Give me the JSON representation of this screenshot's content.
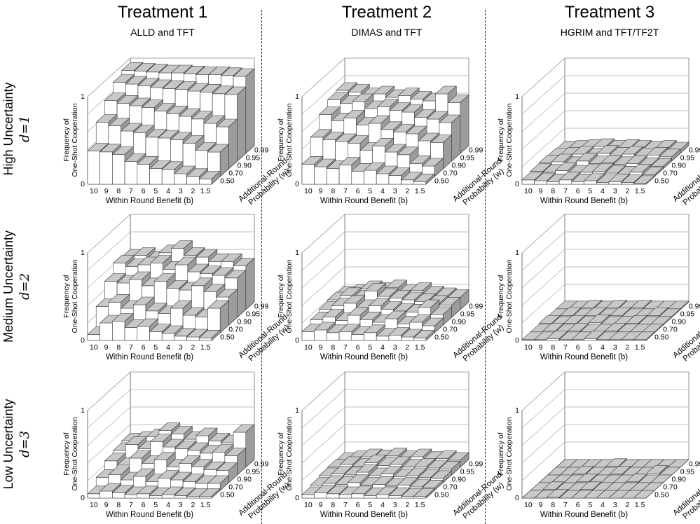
{
  "columns": [
    {
      "title": "Treatment 1",
      "subtitle": "ALLD and TFT"
    },
    {
      "title": "Treatment 2",
      "subtitle": "DIMAS and TFT"
    },
    {
      "title": "Treatment 3",
      "subtitle": "HGRIM and TFT/TF2T"
    }
  ],
  "rows": [
    {
      "label": "High Uncertainty",
      "d_label": "d=1"
    },
    {
      "label": "Medium Uncertainty",
      "d_label": "d=2"
    },
    {
      "label": "Low Uncertainty",
      "d_label": "d=3"
    }
  ],
  "axes": {
    "z_label_line1": "Frequency of",
    "z_label_line2": "One-Shot Cooperation",
    "x_label": "Within Round Benefit (b)",
    "y_label_line1": "Additional-Round",
    "y_label_line2": "Probability (w)",
    "z_ticks": [
      "0",
      "1"
    ],
    "x_ticks": [
      "10",
      "9",
      "8",
      "7",
      "6",
      "5",
      "4",
      "3",
      "2",
      "1.5"
    ],
    "y_ticks": [
      "0.50",
      "0.70",
      "0.90",
      "0.95",
      "0.99"
    ]
  },
  "chart_data": [
    {
      "type": "bar3d",
      "treatment": "Treatment 1",
      "uncertainty": "High Uncertainty",
      "zlim": [
        0,
        1
      ],
      "x_categories": [
        "10",
        "9",
        "8",
        "7",
        "6",
        "5",
        "4",
        "3",
        "2",
        "1.5"
      ],
      "y_categories": [
        "0.50",
        "0.70",
        "0.90",
        "0.95",
        "0.99"
      ],
      "values": [
        [
          0.38,
          0.37,
          0.34,
          0.26,
          0.23,
          0.18,
          0.17,
          0.12,
          0.09,
          0.06
        ],
        [
          0.62,
          0.58,
          0.52,
          0.5,
          0.45,
          0.44,
          0.42,
          0.38,
          0.3,
          0.28
        ],
        [
          0.78,
          0.75,
          0.72,
          0.7,
          0.66,
          0.63,
          0.6,
          0.57,
          0.52,
          0.48
        ],
        [
          0.9,
          0.88,
          0.86,
          0.84,
          0.83,
          0.82,
          0.8,
          0.79,
          0.77,
          0.76
        ],
        [
          0.95,
          0.94,
          0.93,
          0.92,
          0.92,
          0.91,
          0.9,
          0.9,
          0.89,
          0.88
        ]
      ]
    },
    {
      "type": "bar3d",
      "treatment": "Treatment 2",
      "uncertainty": "High Uncertainty",
      "zlim": [
        0,
        1
      ],
      "x_categories": [
        "10",
        "9",
        "8",
        "7",
        "6",
        "5",
        "4",
        "3",
        "2",
        "1.5"
      ],
      "y_categories": [
        "0.50",
        "0.70",
        "0.90",
        "0.95",
        "0.99"
      ],
      "values": [
        [
          0.23,
          0.2,
          0.18,
          0.22,
          0.15,
          0.16,
          0.12,
          0.1,
          0.05,
          0.03
        ],
        [
          0.45,
          0.42,
          0.4,
          0.38,
          0.3,
          0.35,
          0.28,
          0.25,
          0.15,
          0.12
        ],
        [
          0.62,
          0.55,
          0.58,
          0.5,
          0.52,
          0.45,
          0.42,
          0.4,
          0.32,
          0.3
        ],
        [
          0.7,
          0.66,
          0.68,
          0.6,
          0.62,
          0.58,
          0.56,
          0.5,
          0.48,
          0.44
        ],
        [
          0.72,
          0.7,
          0.66,
          0.68,
          0.64,
          0.66,
          0.62,
          0.6,
          0.68,
          0.58
        ]
      ]
    },
    {
      "type": "bar3d",
      "treatment": "Treatment 3",
      "uncertainty": "High Uncertainty",
      "zlim": [
        0,
        1
      ],
      "x_categories": [
        "10",
        "9",
        "8",
        "7",
        "6",
        "5",
        "4",
        "3",
        "2",
        "1.5"
      ],
      "y_categories": [
        "0.50",
        "0.70",
        "0.90",
        "0.95",
        "0.99"
      ],
      "values": [
        [
          0.05,
          0.04,
          0.03,
          0.05,
          0.03,
          0.04,
          0.02,
          0.03,
          0.02,
          0.01
        ],
        [
          0.06,
          0.05,
          0.07,
          0.04,
          0.05,
          0.06,
          0.04,
          0.03,
          0.05,
          0.02
        ],
        [
          0.07,
          0.08,
          0.05,
          0.09,
          0.06,
          0.07,
          0.05,
          0.06,
          0.04,
          0.03
        ],
        [
          0.06,
          0.07,
          0.08,
          0.06,
          0.09,
          0.07,
          0.08,
          0.06,
          0.07,
          0.05
        ],
        [
          0.05,
          0.06,
          0.07,
          0.08,
          0.06,
          0.07,
          0.06,
          0.05,
          0.06,
          0.04
        ]
      ]
    },
    {
      "type": "bar3d",
      "treatment": "Treatment 1",
      "uncertainty": "Medium Uncertainty",
      "zlim": [
        0,
        1
      ],
      "x_categories": [
        "10",
        "9",
        "8",
        "7",
        "6",
        "5",
        "4",
        "3",
        "2",
        "1.5"
      ],
      "y_categories": [
        "0.50",
        "0.70",
        "0.90",
        "0.95",
        "0.99"
      ],
      "values": [
        [
          0.07,
          0.2,
          0.22,
          0.15,
          0.16,
          0.1,
          0.08,
          0.05,
          0.04,
          0.03
        ],
        [
          0.3,
          0.35,
          0.28,
          0.32,
          0.25,
          0.22,
          0.28,
          0.2,
          0.18,
          0.28
        ],
        [
          0.5,
          0.48,
          0.52,
          0.45,
          0.5,
          0.42,
          0.4,
          0.45,
          0.38,
          0.32
        ],
        [
          0.62,
          0.58,
          0.6,
          0.62,
          0.55,
          0.6,
          0.52,
          0.5,
          0.48,
          0.45
        ],
        [
          0.6,
          0.62,
          0.58,
          0.65,
          0.7,
          0.62,
          0.6,
          0.55,
          0.55,
          0.5
        ]
      ]
    },
    {
      "type": "bar3d",
      "treatment": "Treatment 2",
      "uncertainty": "Medium Uncertainty",
      "zlim": [
        0,
        1
      ],
      "x_categories": [
        "10",
        "9",
        "8",
        "7",
        "6",
        "5",
        "4",
        "3",
        "2",
        "1.5"
      ],
      "y_categories": [
        "0.50",
        "0.70",
        "0.90",
        "0.95",
        "0.99"
      ],
      "values": [
        [
          0.1,
          0.12,
          0.09,
          0.1,
          0.07,
          0.09,
          0.05,
          0.06,
          0.04,
          0.03
        ],
        [
          0.15,
          0.18,
          0.14,
          0.2,
          0.15,
          0.12,
          0.16,
          0.1,
          0.12,
          0.08
        ],
        [
          0.18,
          0.22,
          0.25,
          0.2,
          0.22,
          0.18,
          0.16,
          0.15,
          0.2,
          0.12
        ],
        [
          0.2,
          0.25,
          0.22,
          0.3,
          0.24,
          0.22,
          0.2,
          0.18,
          0.16,
          0.14
        ],
        [
          0.18,
          0.2,
          0.24,
          0.22,
          0.25,
          0.2,
          0.22,
          0.18,
          0.16,
          0.14
        ]
      ]
    },
    {
      "type": "bar3d",
      "treatment": "Treatment 3",
      "uncertainty": "Medium Uncertainty",
      "zlim": [
        0,
        1
      ],
      "x_categories": [
        "10",
        "9",
        "8",
        "7",
        "6",
        "5",
        "4",
        "3",
        "2",
        "1.5"
      ],
      "y_categories": [
        "0.50",
        "0.70",
        "0.90",
        "0.95",
        "0.99"
      ],
      "values": [
        [
          0.01,
          0.01,
          0.02,
          0.01,
          0.01,
          0.02,
          0.01,
          0.01,
          0.01,
          0.01
        ],
        [
          0.01,
          0.02,
          0.01,
          0.02,
          0.01,
          0.01,
          0.02,
          0.01,
          0.01,
          0.01
        ],
        [
          0.02,
          0.01,
          0.02,
          0.01,
          0.03,
          0.01,
          0.01,
          0.02,
          0.01,
          0.01
        ],
        [
          0.01,
          0.02,
          0.01,
          0.02,
          0.01,
          0.02,
          0.01,
          0.01,
          0.02,
          0.01
        ],
        [
          0.01,
          0.01,
          0.02,
          0.01,
          0.02,
          0.01,
          0.02,
          0.01,
          0.01,
          0.01
        ]
      ]
    },
    {
      "type": "bar3d",
      "treatment": "Treatment 1",
      "uncertainty": "Low Uncertainty",
      "zlim": [
        0,
        1
      ],
      "x_categories": [
        "10",
        "9",
        "8",
        "7",
        "6",
        "5",
        "4",
        "3",
        "2",
        "1.5"
      ],
      "y_categories": [
        "0.50",
        "0.70",
        "0.90",
        "0.95",
        "0.99"
      ],
      "values": [
        [
          0.05,
          0.08,
          0.06,
          0.04,
          0.05,
          0.03,
          0.04,
          0.03,
          0.02,
          0.02
        ],
        [
          0.15,
          0.18,
          0.12,
          0.16,
          0.1,
          0.14,
          0.12,
          0.1,
          0.08,
          0.08
        ],
        [
          0.25,
          0.2,
          0.28,
          0.22,
          0.26,
          0.18,
          0.22,
          0.18,
          0.15,
          0.14
        ],
        [
          0.28,
          0.35,
          0.3,
          0.38,
          0.32,
          0.3,
          0.28,
          0.25,
          0.26,
          0.22
        ],
        [
          0.3,
          0.32,
          0.35,
          0.42,
          0.38,
          0.32,
          0.36,
          0.3,
          0.28,
          0.4
        ]
      ]
    },
    {
      "type": "bar3d",
      "treatment": "Treatment 2",
      "uncertainty": "Low Uncertainty",
      "zlim": [
        0,
        1
      ],
      "x_categories": [
        "10",
        "9",
        "8",
        "7",
        "6",
        "5",
        "4",
        "3",
        "2",
        "1.5"
      ],
      "y_categories": [
        "0.50",
        "0.70",
        "0.90",
        "0.95",
        "0.99"
      ],
      "values": [
        [
          0.04,
          0.06,
          0.05,
          0.04,
          0.05,
          0.03,
          0.04,
          0.03,
          0.02,
          0.02
        ],
        [
          0.06,
          0.08,
          0.07,
          0.09,
          0.06,
          0.07,
          0.05,
          0.06,
          0.04,
          0.03
        ],
        [
          0.08,
          0.1,
          0.09,
          0.12,
          0.08,
          0.1,
          0.07,
          0.08,
          0.06,
          0.05
        ],
        [
          0.09,
          0.12,
          0.1,
          0.14,
          0.11,
          0.12,
          0.09,
          0.1,
          0.08,
          0.07
        ],
        [
          0.08,
          0.1,
          0.12,
          0.11,
          0.13,
          0.1,
          0.12,
          0.09,
          0.1,
          0.08
        ]
      ]
    },
    {
      "type": "bar3d",
      "treatment": "Treatment 3",
      "uncertainty": "Low Uncertainty",
      "zlim": [
        0,
        1
      ],
      "x_categories": [
        "10",
        "9",
        "8",
        "7",
        "6",
        "5",
        "4",
        "3",
        "2",
        "1.5"
      ],
      "y_categories": [
        "0.50",
        "0.70",
        "0.90",
        "0.95",
        "0.99"
      ],
      "values": [
        [
          0.0,
          0.0,
          0.01,
          0.0,
          0.0,
          0.0,
          0.0,
          0.0,
          0.0,
          0.0
        ],
        [
          0.0,
          0.01,
          0.0,
          0.0,
          0.01,
          0.0,
          0.0,
          0.0,
          0.0,
          0.0
        ],
        [
          0.0,
          0.0,
          0.0,
          0.01,
          0.0,
          0.0,
          0.0,
          0.01,
          0.0,
          0.0
        ],
        [
          0.0,
          0.0,
          0.01,
          0.0,
          0.0,
          0.01,
          0.0,
          0.0,
          0.02,
          0.0
        ],
        [
          0.0,
          0.0,
          0.0,
          0.0,
          0.01,
          0.0,
          0.0,
          0.0,
          0.0,
          0.0
        ]
      ]
    }
  ]
}
